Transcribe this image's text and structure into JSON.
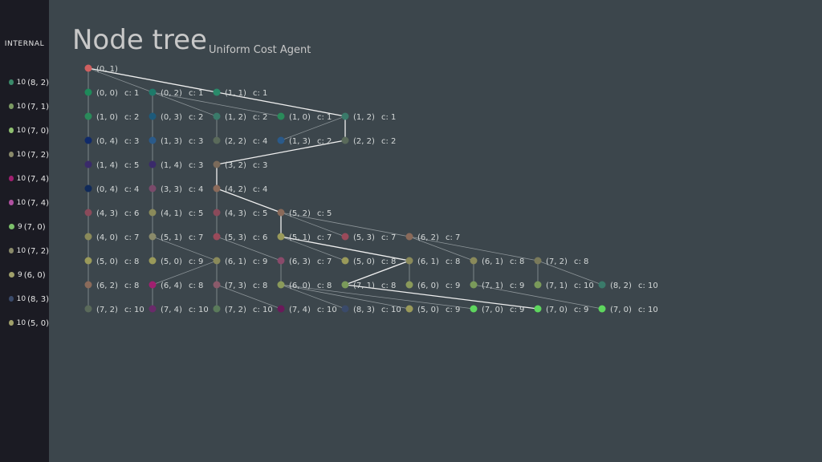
{
  "sidebar": {
    "header": "INTERNAL",
    "items": [
      {
        "count": "10",
        "label": "(8, 2)",
        "color": "#3a8a6a"
      },
      {
        "count": "10",
        "label": "(7, 1)",
        "color": "#7c9a63"
      },
      {
        "count": "10",
        "label": "(7, 0)",
        "color": "#8fbf70"
      },
      {
        "count": "10",
        "label": "(7, 2)",
        "color": "#8a8a6a"
      },
      {
        "count": "10",
        "label": "(7, 4)",
        "color": "#a02070"
      },
      {
        "count": "10",
        "label": "(7, 4)",
        "color": "#b050a0"
      },
      {
        "count": "9",
        "label": "(7, 0)",
        "color": "#7cc06a"
      },
      {
        "count": "10",
        "label": "(7, 2)",
        "color": "#8a8a6a"
      },
      {
        "count": "9",
        "label": "(6, 0)",
        "color": "#a0a06a"
      },
      {
        "count": "10",
        "label": "(8, 3)",
        "color": "#3a4a6a"
      },
      {
        "count": "10",
        "label": "(5, 0)",
        "color": "#a0a06a"
      }
    ]
  },
  "title": "Node tree",
  "subtitle": "Uniform Cost Agent",
  "tree": {
    "nodes": [
      {
        "id": "n0",
        "row": 0,
        "col": 0,
        "label": "(0, 1)",
        "cost": "",
        "color": "#d06060"
      },
      {
        "id": "n1",
        "row": 1,
        "col": 0,
        "label": "(0, 0)",
        "cost": "c: 1",
        "color": "#1e8a5a"
      },
      {
        "id": "n2",
        "row": 1,
        "col": 1,
        "label": "(0, 2)",
        "cost": "c: 1",
        "color": "#1e7a6a"
      },
      {
        "id": "n3",
        "row": 1,
        "col": 2,
        "label": "(1, 1)",
        "cost": "c: 1",
        "color": "#2a8a6a"
      },
      {
        "id": "n4",
        "row": 2,
        "col": 0,
        "label": "(1, 0)",
        "cost": "c: 2",
        "color": "#2a8a5a"
      },
      {
        "id": "n5",
        "row": 2,
        "col": 1,
        "label": "(0, 3)",
        "cost": "c: 2",
        "color": "#1e5a7a"
      },
      {
        "id": "n6",
        "row": 2,
        "col": 2,
        "label": "(1, 2)",
        "cost": "c: 2",
        "color": "#3a7a6a"
      },
      {
        "id": "n7",
        "row": 2,
        "col": 3,
        "label": "(1, 0)",
        "cost": "c: 1",
        "color": "#2a8a5a"
      },
      {
        "id": "n8",
        "row": 2,
        "col": 4,
        "label": "(1, 2)",
        "cost": "c: 1",
        "color": "#3a7a6a"
      },
      {
        "id": "n9",
        "row": 3,
        "col": 0,
        "label": "(0, 4)",
        "cost": "c: 3",
        "color": "#102a6a"
      },
      {
        "id": "n10",
        "row": 3,
        "col": 1,
        "label": "(1, 3)",
        "cost": "c: 3",
        "color": "#2a5a8a"
      },
      {
        "id": "n11",
        "row": 3,
        "col": 2,
        "label": "(2, 2)",
        "cost": "c: 4",
        "color": "#5a6a5a"
      },
      {
        "id": "n12",
        "row": 3,
        "col": 3,
        "label": "(1, 3)",
        "cost": "c: 2",
        "color": "#2a5a8a"
      },
      {
        "id": "n13",
        "row": 3,
        "col": 4,
        "label": "(2, 2)",
        "cost": "c: 2",
        "color": "#5a6a5a"
      },
      {
        "id": "n14",
        "row": 4,
        "col": 0,
        "label": "(1, 4)",
        "cost": "c: 5",
        "color": "#3a2a6a"
      },
      {
        "id": "n15",
        "row": 4,
        "col": 1,
        "label": "(1, 4)",
        "cost": "c: 3",
        "color": "#3a2a6a"
      },
      {
        "id": "n16",
        "row": 4,
        "col": 2,
        "label": "(3, 2)",
        "cost": "c: 3",
        "color": "#7a6a5a"
      },
      {
        "id": "n17",
        "row": 5,
        "col": 0,
        "label": "(0, 4)",
        "cost": "c: 4",
        "color": "#102a5a"
      },
      {
        "id": "n18",
        "row": 5,
        "col": 1,
        "label": "(3, 3)",
        "cost": "c: 4",
        "color": "#7a4a6a"
      },
      {
        "id": "n19",
        "row": 5,
        "col": 2,
        "label": "(4, 2)",
        "cost": "c: 4",
        "color": "#8a6a5a"
      },
      {
        "id": "n20",
        "row": 6,
        "col": 0,
        "label": "(4, 3)",
        "cost": "c: 6",
        "color": "#8a4a5a"
      },
      {
        "id": "n21",
        "row": 6,
        "col": 1,
        "label": "(4, 1)",
        "cost": "c: 5",
        "color": "#8a8a5a"
      },
      {
        "id": "n22",
        "row": 6,
        "col": 2,
        "label": "(4, 3)",
        "cost": "c: 5",
        "color": "#8a4a5a"
      },
      {
        "id": "n23",
        "row": 6,
        "col": 3,
        "label": "(5, 2)",
        "cost": "c: 5",
        "color": "#8a6a5a"
      },
      {
        "id": "n24",
        "row": 7,
        "col": 0,
        "label": "(4, 0)",
        "cost": "c: 7",
        "color": "#8a8a5a"
      },
      {
        "id": "n25",
        "row": 7,
        "col": 1,
        "label": "(5, 1)",
        "cost": "c: 7",
        "color": "#8a8a6a"
      },
      {
        "id": "n26",
        "row": 7,
        "col": 2,
        "label": "(5, 3)",
        "cost": "c: 6",
        "color": "#9a4a5a"
      },
      {
        "id": "n27",
        "row": 7,
        "col": 3,
        "label": "(5, 1)",
        "cost": "c: 7",
        "color": "#9a9a5a"
      },
      {
        "id": "n28",
        "row": 7,
        "col": 4,
        "label": "(5, 3)",
        "cost": "c: 7",
        "color": "#9a4a5a"
      },
      {
        "id": "n29",
        "row": 7,
        "col": 5,
        "label": "(6, 2)",
        "cost": "c: 7",
        "color": "#8a6a5a"
      },
      {
        "id": "n30",
        "row": 8,
        "col": 0,
        "label": "(5, 0)",
        "cost": "c: 8",
        "color": "#9a9a5a"
      },
      {
        "id": "n31",
        "row": 8,
        "col": 1,
        "label": "(5, 0)",
        "cost": "c: 9",
        "color": "#9a9a5a"
      },
      {
        "id": "n32",
        "row": 8,
        "col": 2,
        "label": "(6, 1)",
        "cost": "c: 9",
        "color": "#8a8a5a"
      },
      {
        "id": "n33",
        "row": 8,
        "col": 3,
        "label": "(6, 3)",
        "cost": "c: 7",
        "color": "#8a4a6a"
      },
      {
        "id": "n34",
        "row": 8,
        "col": 4,
        "label": "(5, 0)",
        "cost": "c: 8",
        "color": "#9a9a5a"
      },
      {
        "id": "n35",
        "row": 8,
        "col": 5,
        "label": "(6, 1)",
        "cost": "c: 8",
        "color": "#8a8a5a"
      },
      {
        "id": "n36",
        "row": 8,
        "col": 6,
        "label": "(6, 1)",
        "cost": "c: 8",
        "color": "#8a8a5a"
      },
      {
        "id": "n37",
        "row": 8,
        "col": 7,
        "label": "(7, 2)",
        "cost": "c: 8",
        "color": "#7a7a5a"
      },
      {
        "id": "n38",
        "row": 9,
        "col": 0,
        "label": "(6, 2)",
        "cost": "c: 8",
        "color": "#8a6a5a"
      },
      {
        "id": "n39",
        "row": 9,
        "col": 1,
        "label": "(6, 4)",
        "cost": "c: 8",
        "color": "#a02070"
      },
      {
        "id": "n40",
        "row": 9,
        "col": 2,
        "label": "(7, 3)",
        "cost": "c: 8",
        "color": "#8a5a6a"
      },
      {
        "id": "n41",
        "row": 9,
        "col": 3,
        "label": "(6, 0)",
        "cost": "c: 8",
        "color": "#8a9a5a"
      },
      {
        "id": "n42",
        "row": 9,
        "col": 4,
        "label": "(7, 1)",
        "cost": "c: 8",
        "color": "#7a9a5a"
      },
      {
        "id": "n43",
        "row": 9,
        "col": 5,
        "label": "(6, 0)",
        "cost": "c: 9",
        "color": "#8a9a5a"
      },
      {
        "id": "n44",
        "row": 9,
        "col": 6,
        "label": "(7, 1)",
        "cost": "c: 9",
        "color": "#7a9a5a"
      },
      {
        "id": "n45",
        "row": 9,
        "col": 7,
        "label": "(7, 1)",
        "cost": "c: 10",
        "color": "#7a9a5a"
      },
      {
        "id": "n46",
        "row": 9,
        "col": 8,
        "label": "(8, 2)",
        "cost": "c: 10",
        "color": "#3a7a6a"
      },
      {
        "id": "n47",
        "row": 10,
        "col": 0,
        "label": "(7, 2)",
        "cost": "c: 10",
        "color": "#5a6a5a"
      },
      {
        "id": "n48",
        "row": 10,
        "col": 1,
        "label": "(7, 4)",
        "cost": "c: 10",
        "color": "#6a2a6a"
      },
      {
        "id": "n49",
        "row": 10,
        "col": 2,
        "label": "(7, 2)",
        "cost": "c: 10",
        "color": "#5a7a5a"
      },
      {
        "id": "n50",
        "row": 10,
        "col": 3,
        "label": "(7, 4)",
        "cost": "c: 10",
        "color": "#6a1a5a"
      },
      {
        "id": "n51",
        "row": 10,
        "col": 4,
        "label": "(8, 3)",
        "cost": "c: 10",
        "color": "#3a4a6a"
      },
      {
        "id": "n52",
        "row": 10,
        "col": 5,
        "label": "(5, 0)",
        "cost": "c: 9",
        "color": "#9a9a5a"
      },
      {
        "id": "n53",
        "row": 10,
        "col": 6,
        "label": "(7, 0)",
        "cost": "c: 9",
        "color": "#5ed65e"
      },
      {
        "id": "n54",
        "row": 10,
        "col": 7,
        "label": "(7, 0)",
        "cost": "c: 9",
        "color": "#5ed65e"
      },
      {
        "id": "n55",
        "row": 10,
        "col": 8,
        "label": "(7, 0)",
        "cost": "c: 10",
        "color": "#5ed65e"
      }
    ],
    "edges": [
      [
        "n0",
        "n1",
        0
      ],
      [
        "n0",
        "n2",
        0
      ],
      [
        "n0",
        "n3",
        1
      ],
      [
        "n1",
        "n4",
        0
      ],
      [
        "n2",
        "n5",
        0
      ],
      [
        "n2",
        "n6",
        0
      ],
      [
        "n2",
        "n7",
        0
      ],
      [
        "n3",
        "n8",
        1
      ],
      [
        "n4",
        "n9",
        0
      ],
      [
        "n5",
        "n10",
        0
      ],
      [
        "n6",
        "n11",
        0
      ],
      [
        "n8",
        "n12",
        0
      ],
      [
        "n8",
        "n13",
        1
      ],
      [
        "n9",
        "n14",
        0
      ],
      [
        "n10",
        "n15",
        0
      ],
      [
        "n13",
        "n16",
        1
      ],
      [
        "n14",
        "n17",
        0
      ],
      [
        "n15",
        "n18",
        0
      ],
      [
        "n16",
        "n19",
        1
      ],
      [
        "n17",
        "n20",
        0
      ],
      [
        "n18",
        "n21",
        0
      ],
      [
        "n19",
        "n22",
        0
      ],
      [
        "n19",
        "n23",
        1
      ],
      [
        "n20",
        "n24",
        0
      ],
      [
        "n21",
        "n25",
        0
      ],
      [
        "n22",
        "n26",
        0
      ],
      [
        "n23",
        "n27",
        1
      ],
      [
        "n23",
        "n28",
        0
      ],
      [
        "n23",
        "n29",
        0
      ],
      [
        "n24",
        "n30",
        0
      ],
      [
        "n25",
        "n31",
        0
      ],
      [
        "n25",
        "n32",
        0
      ],
      [
        "n26",
        "n33",
        0
      ],
      [
        "n27",
        "n34",
        0
      ],
      [
        "n27",
        "n35",
        1
      ],
      [
        "n29",
        "n36",
        0
      ],
      [
        "n29",
        "n37",
        0
      ],
      [
        "n30",
        "n38",
        0
      ],
      [
        "n32",
        "n39",
        0
      ],
      [
        "n32",
        "n40",
        0
      ],
      [
        "n33",
        "n41",
        0
      ],
      [
        "n35",
        "n42",
        1
      ],
      [
        "n35",
        "n43",
        0
      ],
      [
        "n36",
        "n44",
        0
      ],
      [
        "n37",
        "n45",
        0
      ],
      [
        "n37",
        "n46",
        0
      ],
      [
        "n38",
        "n47",
        0
      ],
      [
        "n39",
        "n48",
        0
      ],
      [
        "n40",
        "n49",
        0
      ],
      [
        "n40",
        "n50",
        0
      ],
      [
        "n41",
        "n51",
        0
      ],
      [
        "n41",
        "n52",
        0
      ],
      [
        "n41",
        "n53",
        0
      ],
      [
        "n42",
        "n54",
        1
      ],
      [
        "n44",
        "n55",
        0
      ]
    ]
  }
}
